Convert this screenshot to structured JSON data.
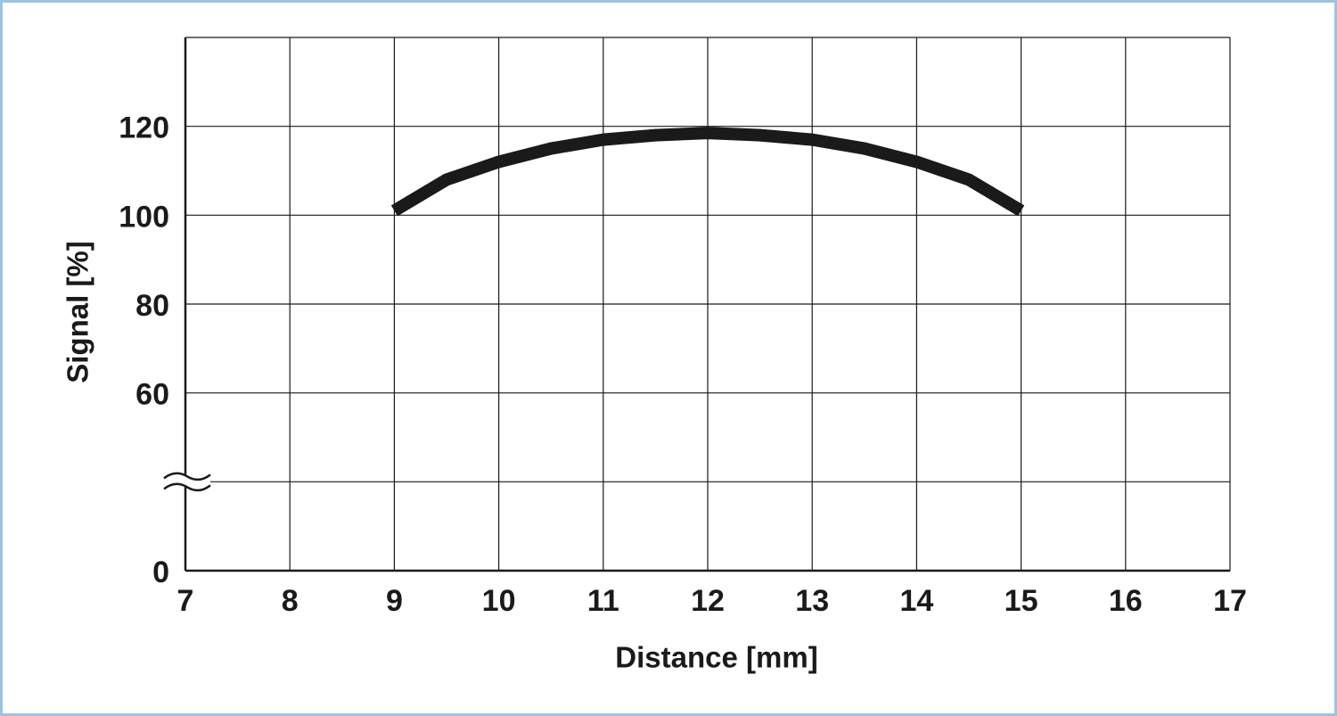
{
  "chart_data": {
    "type": "line",
    "xlabel": "Distance [mm]",
    "ylabel": "Signal [%]",
    "x": [
      9,
      9.5,
      10,
      10.5,
      11,
      11.5,
      12,
      12.5,
      13,
      13.5,
      14,
      14.5,
      15
    ],
    "series": [
      {
        "color": "#1a1a1a",
        "values": [
          101,
          108,
          112,
          115,
          117,
          118,
          118.5,
          118,
          117,
          115,
          112,
          108,
          101
        ]
      }
    ],
    "xlim": [
      7,
      17
    ],
    "ylim": [
      0,
      140
    ],
    "xticks": [
      7,
      8,
      9,
      10,
      11,
      12,
      13,
      14,
      15,
      16,
      17
    ],
    "yticks": [
      0,
      60,
      80,
      100,
      120
    ],
    "ybreak": [
      0,
      60
    ],
    "grid": true
  }
}
